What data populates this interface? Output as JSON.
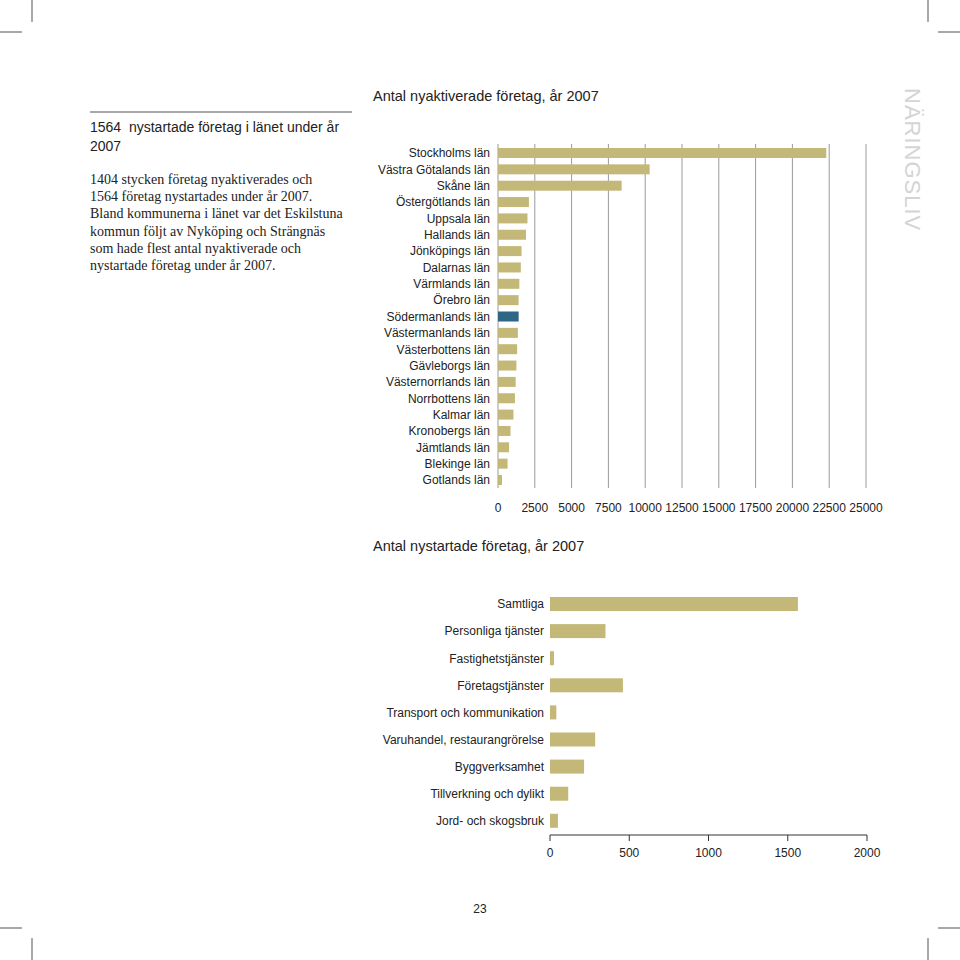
{
  "sidebar": {
    "heading": "1564  nystartade företag i länet under år 2007",
    "lines": [
      "1404 stycken företag nyaktiverades och",
      "1564 företag nystartades under år 2007.",
      "Bland kommunerna i länet var det Eskilstuna",
      "kommun följt av Nyköping och Strängnäs",
      "som hade flest antal nyaktiverade och",
      "nystartade företag under år 2007."
    ]
  },
  "section_label": "NÄRINGSLIV",
  "page_number": "23",
  "chart_data": [
    {
      "type": "bar",
      "orientation": "horizontal",
      "title": "Antal nyaktiverade företag, år 2007",
      "categories": [
        "Stockholms län",
        "Västra Götalands län",
        "Skåne län",
        "Östergötlands län",
        "Uppsala län",
        "Hallands län",
        "Jönköpings län",
        "Dalarnas län",
        "Värmlands län",
        "Örebro län",
        "Södermanlands län",
        "Västermanlands län",
        "Västerbottens län",
        "Gävleborgs län",
        "Västernorrlands län",
        "Norrbottens län",
        "Kalmar län",
        "Kronobergs län",
        "Jämtlands län",
        "Blekinge län",
        "Gotlands län"
      ],
      "values": [
        22300,
        10300,
        8400,
        2100,
        2000,
        1900,
        1600,
        1550,
        1450,
        1400,
        1404,
        1350,
        1300,
        1250,
        1200,
        1150,
        1050,
        850,
        750,
        650,
        270
      ],
      "colors": [
        "#c3b877",
        "#c3b877",
        "#c3b877",
        "#c3b877",
        "#c3b877",
        "#c3b877",
        "#c3b877",
        "#c3b877",
        "#c3b877",
        "#c3b877",
        "#2f6685",
        "#c3b877",
        "#c3b877",
        "#c3b877",
        "#c3b877",
        "#c3b877",
        "#c3b877",
        "#c3b877",
        "#c3b877",
        "#c3b877",
        "#c3b877"
      ],
      "xlim": [
        0,
        25000
      ],
      "xticks": [
        0,
        2500,
        5000,
        7500,
        10000,
        12500,
        15000,
        17500,
        20000,
        22500,
        25000
      ],
      "grid": true
    },
    {
      "type": "bar",
      "orientation": "horizontal",
      "title": "Antal nystartade företag, år 2007",
      "categories": [
        "Samtliga",
        "Personliga tjänster",
        "Fastighetstjänster",
        "Företagstjänster",
        "Transport och kommunikation",
        "Varuhandel, restaurangrörelse",
        "Byggverksamhet",
        "Tillverkning och dylikt",
        "Jord- och skogsbruk"
      ],
      "values": [
        1564,
        350,
        25,
        460,
        40,
        285,
        215,
        115,
        50
      ],
      "color": "#c3b877",
      "xlim": [
        0,
        2000
      ],
      "xticks": [
        0,
        500,
        1000,
        1500,
        2000
      ],
      "grid": false
    }
  ]
}
